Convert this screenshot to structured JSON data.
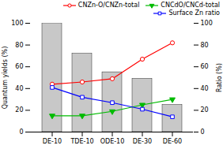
{
  "chart_data": {
    "type": "bar_line",
    "categories": [
      "DE-10",
      "TDE-10",
      "ODE-10",
      "DE-30",
      "DE-60"
    ],
    "values": [
      100,
      72,
      55,
      49,
      25
    ],
    "color": "#c8c8c8",
    "ylabel": "Quantum yields (%)",
    "y2label": "Ratio (%)",
    "ylim": [
      0,
      100
    ],
    "yticks": [
      0,
      20,
      40,
      60,
      80,
      100
    ],
    "y2lim": [
      0,
      100
    ],
    "y2ticks": [
      0,
      20,
      40,
      60,
      80,
      100
    ],
    "legend": "top",
    "series": [
      {
        "name": "CNZn-O/CNZn-total",
        "color": "#ff0000",
        "values": [
          44,
          46,
          49,
          67,
          82
        ],
        "axis": "y2",
        "type": "line",
        "marker": "circle"
      },
      {
        "name": "CNCdO/CNCd-total",
        "color": "#00bb00",
        "values": [
          15,
          15,
          19,
          25,
          30
        ],
        "axis": "y2",
        "type": "line",
        "marker": "triangle-down"
      },
      {
        "name": "Surface Zn ratio",
        "color": "#0000ff",
        "values": [
          41,
          32,
          27,
          21,
          14
        ],
        "axis": "y2",
        "type": "line",
        "marker": "square"
      }
    ]
  }
}
